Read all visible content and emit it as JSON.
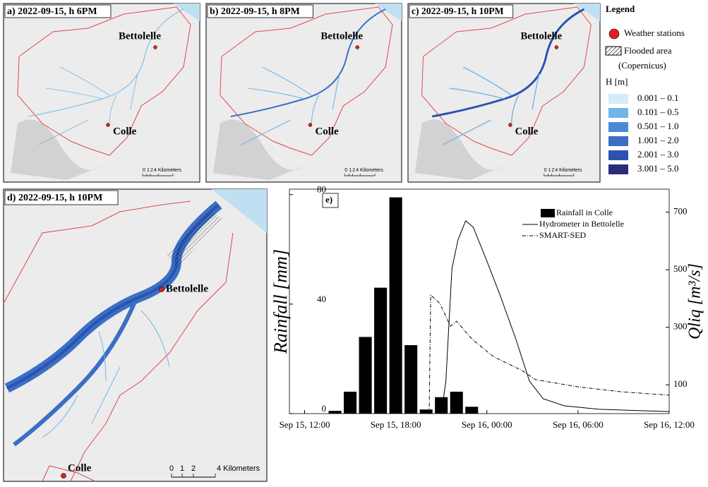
{
  "maps": [
    {
      "title": "a) 2022-09-15, h 6PM",
      "stations": [
        "Bettolelle",
        "Colle"
      ],
      "scale": [
        "0",
        "1",
        "2",
        "4 Kilometers"
      ]
    },
    {
      "title": "b) 2022-09-15, h 8PM",
      "stations": [
        "Bettolelle",
        "Colle"
      ],
      "scale": [
        "0",
        "1",
        "2",
        "4 Kilometers"
      ]
    },
    {
      "title": "c) 2022-09-15, h 10PM",
      "stations": [
        "Bettolelle",
        "Colle"
      ],
      "scale": [
        "0",
        "1",
        "2",
        "4 Kilometers"
      ]
    },
    {
      "title": "d) 2022-09-15, h 10PM",
      "stations": [
        "Bettolelle",
        "Colle"
      ],
      "scale": [
        "0",
        "1",
        "2",
        "4 Kilometers"
      ]
    }
  ],
  "legend": {
    "title": "Legend",
    "stations": "Weather stations",
    "flooded": [
      "Flooded area",
      "(Copernicus)"
    ],
    "depth_title": "H [m]",
    "classes": [
      {
        "label": "0.001 – 0.1",
        "color": "#d6ebf8"
      },
      {
        "label": "0.101 – 0.5",
        "color": "#6fb6e8"
      },
      {
        "label": "0.501 – 1.0",
        "color": "#4a89d6"
      },
      {
        "label": "1.001 – 2.0",
        "color": "#3a6fc6"
      },
      {
        "label": "2.001 – 3.0",
        "color": "#2d52b0"
      },
      {
        "label": "3.001 – 5.0",
        "color": "#2c2a7a"
      }
    ]
  },
  "chart_data": {
    "type": "bar-line",
    "panel": "e)",
    "ylabel": "Rainfall [mm]",
    "y2label": "Qliq [m³/s]",
    "xlim": [
      11,
      36
    ],
    "xticks": [
      {
        "value": 12,
        "label": "Sep 15, 12:00"
      },
      {
        "value": 18,
        "label": "Sep 15, 18:00"
      },
      {
        "value": 24,
        "label": "Sep 16, 00:00"
      },
      {
        "value": 30,
        "label": "Sep 16, 06:00"
      },
      {
        "value": 36,
        "label": "Sep 16, 12:00"
      }
    ],
    "ylim": [
      0,
      82
    ],
    "yticks": [
      0,
      40,
      80
    ],
    "y2lim": [
      0,
      780
    ],
    "y2ticks": [
      100,
      300,
      500,
      700
    ],
    "series": [
      {
        "name": "Rainfall in Colle",
        "kind": "bar",
        "color": "#000000",
        "x": [
          14,
          15,
          16,
          17,
          18,
          19,
          20,
          21,
          22,
          23
        ],
        "values": [
          1,
          8,
          28,
          46,
          79,
          25,
          1.5,
          6,
          8,
          2.5
        ]
      },
      {
        "name": "Hydrometer in Bettolelle",
        "kind": "line",
        "axis": "y2",
        "color": "#000000",
        "dash": "solid",
        "x": [
          21.0,
          21.3,
          21.7,
          22.1,
          22.6,
          23.1,
          24.0,
          24.9,
          25.9,
          26.8,
          27.7,
          29.1,
          31.4,
          36
        ],
        "values": [
          0,
          113,
          505,
          604,
          670,
          648,
          530,
          407,
          260,
          113,
          52,
          27,
          15,
          7
        ]
      },
      {
        "name": "SMART-SED",
        "kind": "line",
        "axis": "y2",
        "color": "#000000",
        "dash": "dashdot",
        "x": [
          20.2,
          20.3,
          20.9,
          21.6,
          22.0,
          23.0,
          24.4,
          26.3,
          27.2,
          30.0,
          32.8,
          36
        ],
        "values": [
          0,
          412,
          383,
          304,
          321,
          260,
          199,
          150,
          118,
          93,
          76,
          64
        ]
      }
    ]
  }
}
